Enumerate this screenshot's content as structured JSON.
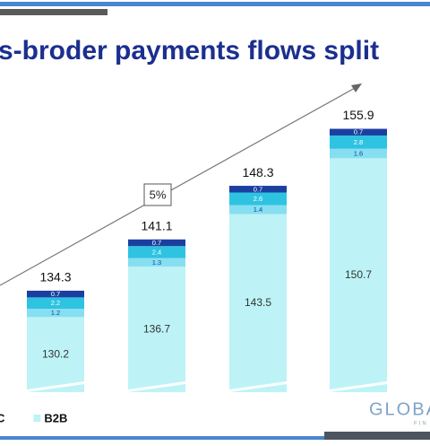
{
  "chart_data": {
    "type": "stacked_bar",
    "title": "s-broder payments flows split",
    "categories": [
      null,
      null,
      null,
      null
    ],
    "series": [
      {
        "name": "B2B",
        "color": "#bdf3f6",
        "values": [
          130.2,
          136.7,
          143.5,
          150.7
        ]
      },
      {
        "color": "#86dff0",
        "values": [
          1.2,
          1.3,
          1.4,
          1.6
        ]
      },
      {
        "color": "#2fc3e2",
        "values": [
          2.2,
          2.4,
          2.6,
          2.8
        ]
      },
      {
        "name": "C",
        "color": "#1b3fa0",
        "values": [
          0.7,
          0.7,
          0.7,
          0.7
        ]
      }
    ],
    "totals": [
      134.3,
      141.1,
      148.3,
      155.9
    ],
    "annotation": "5%",
    "logo": {
      "name": "GLOBA",
      "sub": "FIN"
    }
  }
}
